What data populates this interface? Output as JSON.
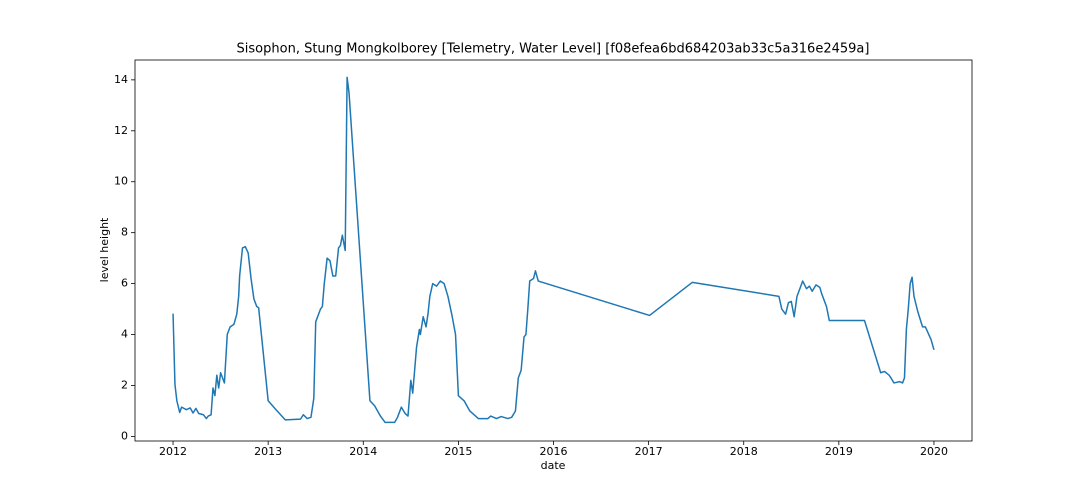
{
  "chart_data": {
    "type": "line",
    "title": "Sisophon, Stung  Mongkolborey [Telemetry, Water Level] [f08efea6bd684203ab33c5a316e2459a]",
    "x_label": "date",
    "y_label": "level height",
    "color": "#1f77b4",
    "xlim": [
      2011.6,
      2020.4
    ],
    "xticks": [
      2012,
      2013,
      2014,
      2015,
      2016,
      2017,
      2018,
      2019,
      2020
    ],
    "ylim": [
      -0.18,
      14.78
    ],
    "yticks": [
      0,
      2,
      4,
      6,
      8,
      10,
      12,
      14
    ],
    "x": [
      2012.0,
      2012.02,
      2012.04,
      2012.07,
      2012.09,
      2012.14,
      2012.18,
      2012.21,
      2012.24,
      2012.27,
      2012.32,
      2012.35,
      2012.37,
      2012.4,
      2012.42,
      2012.44,
      2012.46,
      2012.48,
      2012.5,
      2012.54,
      2012.57,
      2012.6,
      2012.64,
      2012.67,
      2012.69,
      2012.7,
      2012.73,
      2012.76,
      2012.79,
      2012.82,
      2012.85,
      2012.88,
      2012.9,
      2013.0,
      2013.07,
      2013.18,
      2013.34,
      2013.37,
      2013.41,
      2013.45,
      2013.48,
      2013.5,
      2013.55,
      2013.57,
      2013.59,
      2013.62,
      2013.65,
      2013.68,
      2013.71,
      2013.74,
      2013.76,
      2013.78,
      2013.81,
      2013.83,
      2013.85,
      2014.07,
      2014.12,
      2014.18,
      2014.23,
      2014.33,
      2014.36,
      2014.4,
      2014.44,
      2014.47,
      2014.5,
      2014.52,
      2014.56,
      2014.59,
      2014.6,
      2014.63,
      2014.66,
      2014.68,
      2014.7,
      2014.73,
      2014.77,
      2014.81,
      2014.85,
      2014.89,
      2014.93,
      2014.97,
      2015.0,
      2015.06,
      2015.12,
      2015.21,
      2015.31,
      2015.34,
      2015.4,
      2015.45,
      2015.52,
      2015.56,
      2015.6,
      2015.63,
      2015.66,
      2015.69,
      2015.71,
      2015.73,
      2015.75,
      2015.79,
      2015.81,
      2015.84,
      2017.01,
      2017.46,
      2018.37,
      2018.4,
      2018.44,
      2018.47,
      2018.5,
      2018.53,
      2018.56,
      2018.59,
      2018.62,
      2018.66,
      2018.69,
      2018.72,
      2018.76,
      2018.8,
      2018.82,
      2018.87,
      2018.9,
      2019.27,
      2019.44,
      2019.48,
      2019.53,
      2019.58,
      2019.64,
      2019.67,
      2019.69,
      2019.71,
      2019.73,
      2019.75,
      2019.77,
      2019.79,
      2019.83,
      2019.88,
      2019.91,
      2019.97,
      2020.0
    ],
    "values": [
      4.82,
      2.04,
      1.4,
      0.94,
      1.15,
      1.05,
      1.12,
      0.92,
      1.1,
      0.9,
      0.85,
      0.7,
      0.8,
      0.85,
      1.9,
      1.6,
      2.4,
      1.9,
      2.5,
      2.1,
      4.0,
      4.3,
      4.4,
      4.8,
      5.5,
      6.3,
      7.4,
      7.45,
      7.2,
      6.2,
      5.4,
      5.1,
      5.05,
      1.4,
      1.1,
      0.65,
      0.68,
      0.85,
      0.7,
      0.75,
      1.5,
      4.5,
      5.0,
      5.1,
      6.0,
      7.0,
      6.9,
      6.3,
      6.3,
      7.4,
      7.5,
      7.9,
      7.3,
      14.1,
      13.5,
      1.4,
      1.2,
      0.8,
      0.55,
      0.55,
      0.75,
      1.15,
      0.9,
      0.8,
      2.2,
      1.7,
      3.5,
      4.2,
      4.0,
      4.7,
      4.3,
      4.8,
      5.5,
      6.0,
      5.9,
      6.1,
      6.0,
      5.5,
      4.8,
      4.0,
      1.6,
      1.4,
      1.0,
      0.7,
      0.7,
      0.8,
      0.7,
      0.78,
      0.7,
      0.75,
      1.0,
      2.3,
      2.6,
      3.9,
      4.0,
      5.0,
      6.1,
      6.2,
      6.5,
      6.1,
      4.75,
      6.05,
      5.5,
      5.0,
      4.8,
      5.25,
      5.3,
      4.7,
      5.5,
      5.8,
      6.1,
      5.8,
      5.9,
      5.7,
      5.95,
      5.85,
      5.6,
      5.1,
      4.55,
      4.55,
      2.5,
      2.55,
      2.4,
      2.1,
      2.15,
      2.1,
      2.3,
      4.2,
      5.0,
      6.0,
      6.25,
      5.5,
      4.9,
      4.3,
      4.3,
      3.8,
      3.4
    ]
  }
}
